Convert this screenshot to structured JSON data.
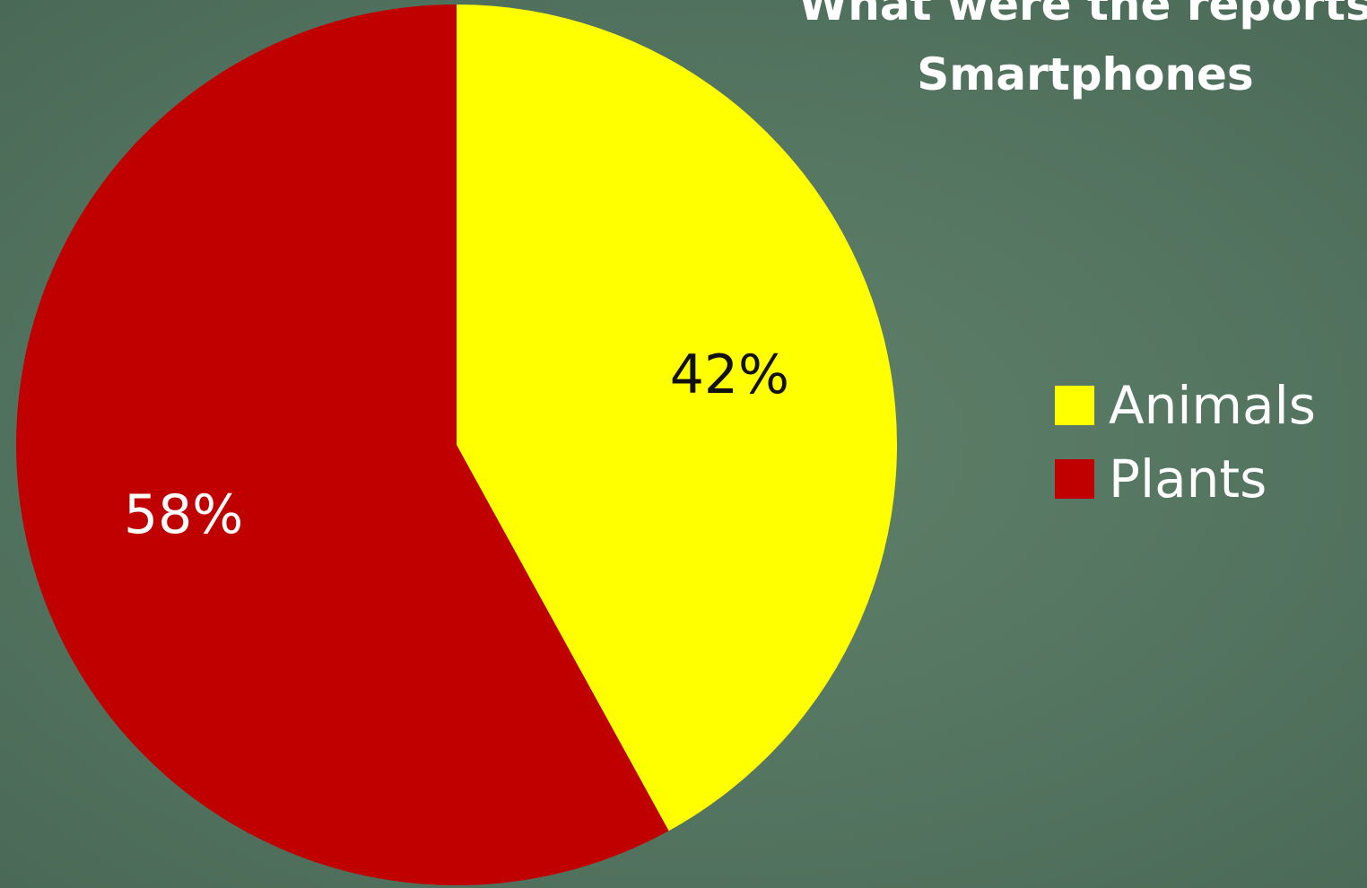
{
  "title": {
    "line1": "What were the reports",
    "line2": "Smartphones"
  },
  "colors": {
    "animals": "#ffff00",
    "plants": "#c00000",
    "label_dark": "#111111",
    "label_light": "#ffffff"
  },
  "legend": {
    "items": [
      {
        "label": "Animals",
        "color": "#ffff00"
      },
      {
        "label": "Plants",
        "color": "#c00000"
      }
    ]
  },
  "chart_data": {
    "type": "pie",
    "title": "What were the reports Smartphones",
    "legend_position": "right",
    "slices": [
      {
        "name": "Animals",
        "value": 42,
        "label": "42%",
        "color": "#ffff00"
      },
      {
        "name": "Plants",
        "value": 58,
        "label": "58%",
        "color": "#c00000"
      }
    ]
  }
}
